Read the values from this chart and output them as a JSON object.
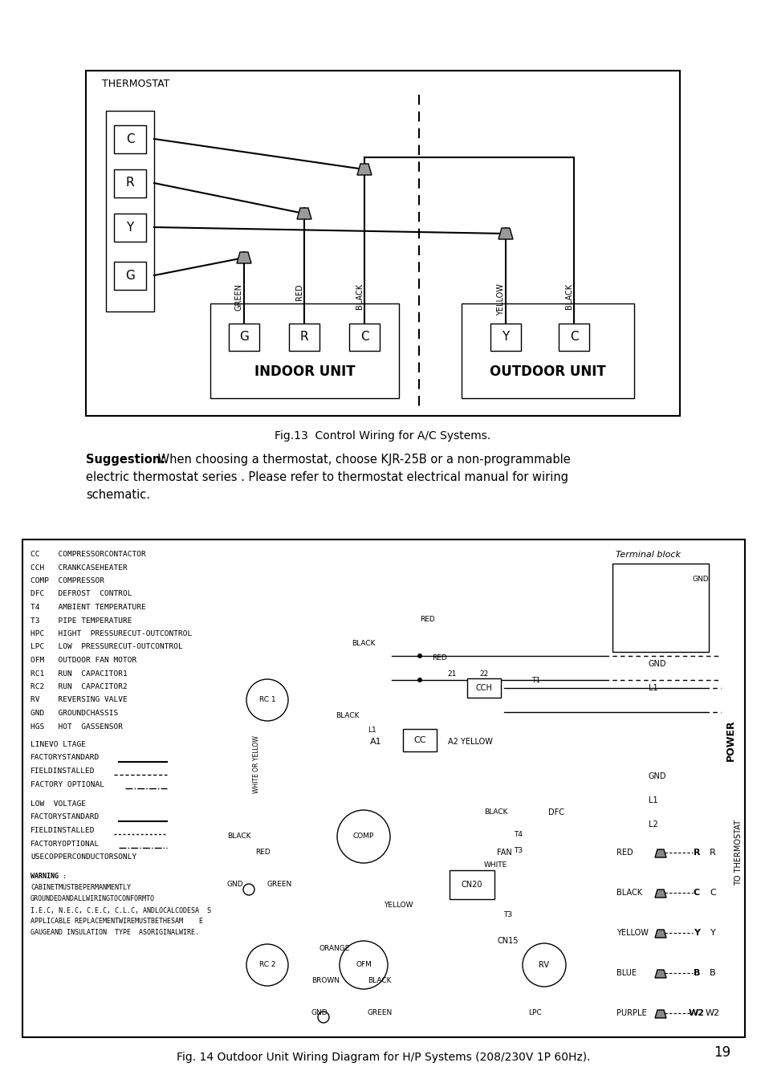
{
  "page_bg": "#ffffff",
  "page_number": "19",
  "fig13_caption": "Fig.13  Control Wiring for A/C Systems.",
  "fig14_caption": "Fig. 14 Outdoor Unit Wiring Diagram for H/P Systems (208/230V 1P 60Hz).",
  "suggestion_bold": "Suggestion:",
  "suggestion_rest": " When choosing a thermostat, choose KJR-25B or a non-programmable",
  "suggestion_line2": "electric thermostat series . Please refer to thermostat electrical manual for wiring",
  "suggestion_line3": "schematic.",
  "legend_lines": [
    "CC    COMPRESSORCONTACTOR",
    "CCH   CRANKCASEHEATER",
    "COMP  COMPRESSOR",
    "DFC   DEFROST  CONTROL",
    "T4    AMBIENT TEMPERATURE",
    "T3    PIPE TEMPERATURE",
    "HPC   HIGHT  PRESSURECUT-OUTCONTROL",
    "LPC   LOW  PRESSURECUT-OUTCONTROL",
    "OFM   OUTDOOR FAN MOTOR",
    "RC1   RUN  CAPACITOR1",
    "RC2   RUN  CAPACITOR2",
    "RV    REVERSING VALVE",
    "GND   GROUNDCHASSIS",
    "HGS   HOT  GASSENSOR"
  ],
  "warning_lines": [
    "WARNING :",
    "CABINETMUSTBEPERMANMENTLY",
    "GROUNDEDANDALLWIRINGTOCONFORMTO",
    "I.E.C, N.E.C, C.E.C, C.L.C, ANDLOCALCODESA  S",
    "APPLICABLE REPLACEMENTWIREMUSTBETHESAM    E",
    "GAUGEAND INSULATION  TYPE  ASORIGINALWIRE."
  ]
}
